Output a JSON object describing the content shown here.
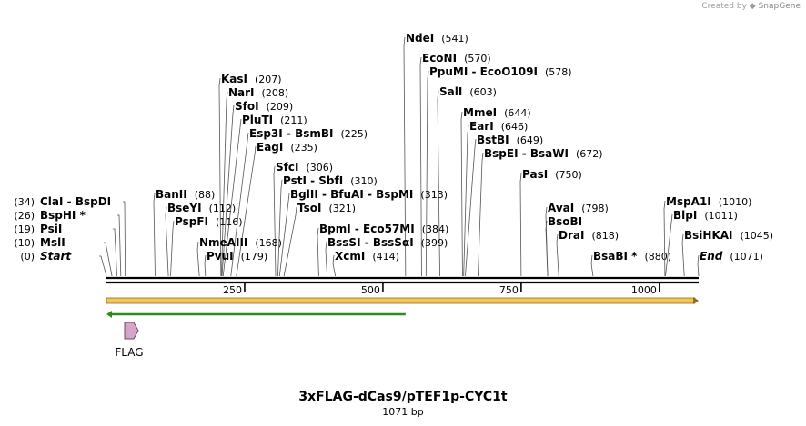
{
  "credit": {
    "prefix": "Created by",
    "brand": "SnapGene"
  },
  "title": "3xFLAG-dCas9/pTEF1p-CYC1t",
  "length_label": "1071 bp",
  "total_bp": 1071,
  "ticks": [
    {
      "bp": 250,
      "label": "250"
    },
    {
      "bp": 500,
      "label": "500"
    },
    {
      "bp": 750,
      "label": "750"
    },
    {
      "bp": 1000,
      "label": "1000"
    }
  ],
  "left_sites": [
    {
      "bp": 34,
      "name": "ClaI  -  BspDI",
      "pos": "(34)"
    },
    {
      "bp": 26,
      "name": "BspHI *",
      "pos": "(26)"
    },
    {
      "bp": 19,
      "name": "PsiI",
      "pos": "(19)"
    },
    {
      "bp": 10,
      "name": "MslI",
      "pos": "(10)"
    },
    {
      "bp": 0,
      "name": "Start",
      "pos": "(0)",
      "italic": true
    }
  ],
  "right_sites": [
    {
      "bp": 541,
      "name": "NdeI",
      "pos": "(541)"
    },
    {
      "bp": 570,
      "name": "EcoNI",
      "pos": "(570)"
    },
    {
      "bp": 578,
      "name": "PpuMI  -  EcoO109I",
      "pos": "(578)"
    },
    {
      "bp": 603,
      "name": "SalI",
      "pos": "(603)"
    },
    {
      "bp": 644,
      "name": "MmeI",
      "pos": "(644)"
    },
    {
      "bp": 646,
      "name": "EarI",
      "pos": "(646)"
    },
    {
      "bp": 649,
      "name": "BstBI",
      "pos": "(649)"
    },
    {
      "bp": 672,
      "name": "BspEI  -  BsaWI",
      "pos": "(672)"
    },
    {
      "bp": 207,
      "name": "KasI",
      "pos": "(207)"
    },
    {
      "bp": 208,
      "name": "NarI",
      "pos": "(208)"
    },
    {
      "bp": 209,
      "name": "SfoI",
      "pos": "(209)"
    },
    {
      "bp": 211,
      "name": "PluTI",
      "pos": "(211)"
    },
    {
      "bp": 225,
      "name": "Esp3I  -  BsmBI",
      "pos": "(225)"
    },
    {
      "bp": 235,
      "name": "EagI",
      "pos": "(235)"
    },
    {
      "bp": 306,
      "name": "SfcI",
      "pos": "(306)"
    },
    {
      "bp": 310,
      "name": "PstI  -  SbfI",
      "pos": "(310)"
    },
    {
      "bp": 313,
      "name": "BglII  -  BfuAI  -  BspMI",
      "pos": "(313)"
    },
    {
      "bp": 321,
      "name": "TsoI",
      "pos": "(321)"
    },
    {
      "bp": 750,
      "name": "PasI",
      "pos": "(750)"
    },
    {
      "bp": 88,
      "name": "BanII",
      "pos": "(88)"
    },
    {
      "bp": 112,
      "name": "BseYI",
      "pos": "(112)"
    },
    {
      "bp": 116,
      "name": "PspFI",
      "pos": "(116)"
    },
    {
      "bp": 168,
      "name": "NmeAIII",
      "pos": "(168)"
    },
    {
      "bp": 179,
      "name": "PvuI",
      "pos": "(179)"
    },
    {
      "bp": 384,
      "name": "BpmI  -  Eco57MI",
      "pos": "(384)"
    },
    {
      "bp": 399,
      "name": "BssSI  -  BssSαI",
      "pos": "(399)"
    },
    {
      "bp": 414,
      "name": "XcmI",
      "pos": "(414)"
    },
    {
      "bp": 798,
      "name": "AvaI",
      "pos": "(798)"
    },
    {
      "bp": 798,
      "name": "BsoBI",
      "pos": ""
    },
    {
      "bp": 818,
      "name": "DraI",
      "pos": "(818)"
    },
    {
      "bp": 880,
      "name": "BsaBI *",
      "pos": "(880)"
    },
    {
      "bp": 1010,
      "name": "MspA1I",
      "pos": "(1010)"
    },
    {
      "bp": 1011,
      "name": "BlpI",
      "pos": "(1011)"
    },
    {
      "bp": 1045,
      "name": "BsiHKAI",
      "pos": "(1045)"
    },
    {
      "bp": 1071,
      "name": "End",
      "pos": "(1071)",
      "italic": true
    }
  ],
  "features": [
    {
      "name": "",
      "start": 0,
      "end": 1071,
      "color": "#f2c45a",
      "outline": "#9a6a1a",
      "direction": "forward"
    },
    {
      "name": "",
      "start": 0,
      "end": 541,
      "color": "#2f8a1e",
      "outline": "#2f8a1e",
      "direction": "reverse"
    },
    {
      "name": "FLAG",
      "start": 32,
      "end": 56,
      "color": "#d6a3c9",
      "outline": "#6b4a63",
      "direction": "forward"
    }
  ],
  "colors": {
    "backbone": "#000000",
    "leader": "#555555"
  }
}
